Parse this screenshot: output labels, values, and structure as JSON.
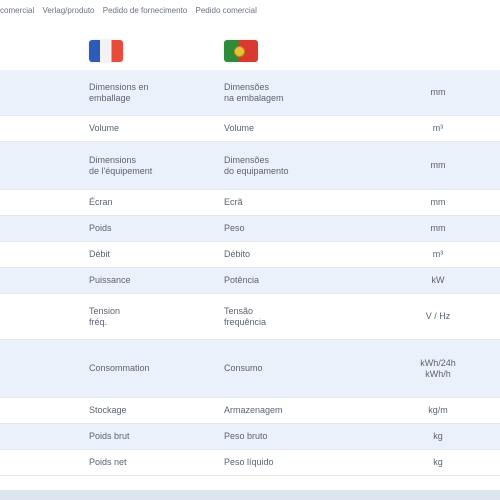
{
  "header": {
    "items": [
      "comercial",
      "Verlag/produto",
      "Pedido de fornecimento",
      "Pedido comercial"
    ]
  },
  "flags": {
    "fr": "flag-france-icon",
    "pt": "flag-portugal-icon"
  },
  "table": {
    "rows": [
      {
        "c0": "",
        "c1": "Dimensions en\nemballage",
        "c2": "Dimensões\nna embalagem",
        "c3": "mm",
        "alt": true
      },
      {
        "c0": "",
        "c1": "Volume",
        "c2": "Volume",
        "c3": "m³",
        "alt": false
      },
      {
        "c0": "",
        "c1": "Dimensions\nde l'équipement",
        "c2": "Dimensões\ndo equipamento",
        "c3": "mm",
        "alt": true
      },
      {
        "c0": "",
        "c1": "Écran",
        "c2": "Ecrã",
        "c3": "mm",
        "alt": false
      },
      {
        "c0": "",
        "c1": "Poids",
        "c2": "Peso",
        "c3": "mm",
        "alt": true
      },
      {
        "c0": "",
        "c1": "Débit",
        "c2": "Débito",
        "c3": "m³",
        "alt": false
      },
      {
        "c0": "",
        "c1": "Puissance",
        "c2": "Potência",
        "c3": "kW",
        "alt": true
      },
      {
        "c0": "",
        "c1": "Tension\nfréq.",
        "c2": "Tensão\nfrequência",
        "c3": "V / Hz",
        "alt": false
      },
      {
        "c0": "",
        "c1": "Consommation",
        "c2": "Consumo",
        "c3": "kWh/24h\nkWh/h",
        "alt": true
      },
      {
        "c0": "",
        "c1": "Stockage",
        "c2": "Armazenagem",
        "c3": "kg/m",
        "alt": false
      },
      {
        "c0": "",
        "c1": "Poids brut",
        "c2": "Peso bruto",
        "c3": "kg",
        "alt": true
      },
      {
        "c0": "",
        "c1": "Poids net",
        "c2": "Peso líquido",
        "c3": "kg",
        "alt": false
      }
    ]
  }
}
